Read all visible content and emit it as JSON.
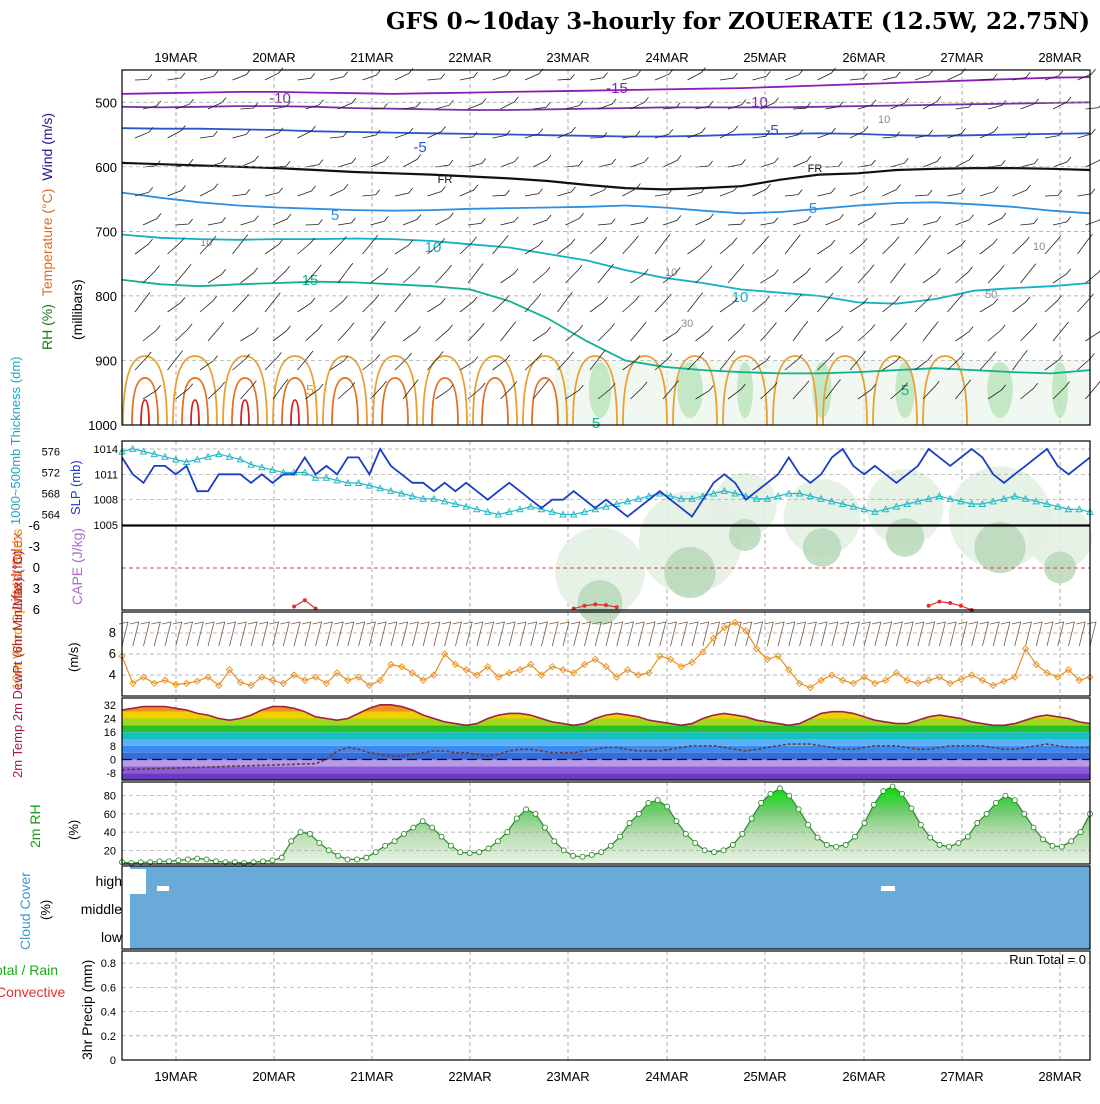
{
  "page": {
    "title": "GFS 0~10day 3-hourly for ZOUERATE (12.5W, 22.75N)"
  },
  "chart_data": [
    {
      "type": "line",
      "panel": "upper-air cross-section",
      "dates": [
        "19MAR",
        "20MAR",
        "21MAR",
        "22MAR",
        "23MAR",
        "24MAR",
        "25MAR",
        "26MAR",
        "27MAR",
        "28MAR"
      ],
      "ylabel_parts": {
        "rh": "RH (%)",
        "temperature": "Temperature (°C)",
        "wind": "Wind (m/s)",
        "units": "(millibars)"
      },
      "yticks": [
        500,
        600,
        700,
        800,
        900,
        1000
      ],
      "ylim": [
        1000,
        450
      ],
      "temperature_contours": [
        {
          "label": "-15",
          "color": "#8a1fb8",
          "level_mb": [
            487,
            486,
            485,
            484,
            484,
            485,
            486,
            487,
            486,
            485,
            484,
            483,
            482,
            481,
            480,
            479,
            478,
            476,
            474,
            472,
            470,
            468,
            466,
            464,
            462,
            461
          ]
        },
        {
          "label": "-10",
          "color": "#7a2ea8",
          "level_mb": [
            507,
            508,
            507,
            506,
            506,
            507,
            509,
            510,
            511,
            512,
            512,
            511,
            510,
            509,
            508,
            508,
            508,
            508,
            507,
            506,
            505,
            504,
            503,
            502,
            501,
            500
          ]
        },
        {
          "label": "-5",
          "color": "#2a55d0",
          "level_mb": [
            540,
            541,
            541,
            542,
            543,
            545,
            546,
            547,
            548,
            549,
            550,
            551,
            552,
            553,
            553,
            552,
            550,
            549,
            548,
            549,
            551,
            552,
            551,
            550,
            549,
            548
          ]
        },
        {
          "label": "FR",
          "color": "#111111",
          "level_mb": [
            594,
            596,
            598,
            600,
            602,
            605,
            608,
            610,
            612,
            615,
            618,
            622,
            628,
            633,
            635,
            633,
            630,
            620,
            612,
            610,
            605,
            603,
            602,
            602,
            603,
            605
          ]
        },
        {
          "label": "5",
          "color": "#2e8fe0",
          "level_mb": [
            640,
            648,
            655,
            660,
            663,
            665,
            667,
            668,
            667,
            665,
            664,
            663,
            662,
            660,
            663,
            668,
            672,
            670,
            665,
            660,
            656,
            655,
            658,
            662,
            668,
            672
          ]
        },
        {
          "label": "10",
          "color": "#12b0c0",
          "level_mb": [
            705,
            710,
            712,
            713,
            712,
            712,
            711,
            712,
            715,
            720,
            725,
            735,
            745,
            760,
            772,
            780,
            790,
            795,
            800,
            810,
            812,
            805,
            792,
            788,
            785,
            780
          ]
        },
        {
          "label": "15",
          "color": "#10b090",
          "level_mb": [
            775,
            782,
            785,
            782,
            780,
            778,
            779,
            782,
            785,
            790,
            808,
            835,
            870,
            900,
            910,
            915,
            918,
            920,
            920,
            918,
            915,
            912,
            915,
            918,
            920,
            915
          ]
        }
      ],
      "contour_labels": {
        "fr": "FR",
        "temps": [
          "-15",
          "-10",
          "-5",
          "5",
          "10",
          "15"
        ],
        "rh": [
          "10",
          "30",
          "50"
        ]
      }
    },
    {
      "type": "line",
      "panel": "thickness-slp",
      "ylabel_left": "1000~500mb Thickness (dm)",
      "ylabel_right": "SLP (mb)",
      "left_ticks": [
        "564",
        "568",
        "572",
        "576"
      ],
      "right_ticks": [
        "1005",
        "1008",
        "1011",
        "1014"
      ],
      "series": [
        {
          "name": "SLP (mb)",
          "color": "#1a3cc8",
          "values": [
            1013,
            1011,
            1010,
            1012,
            1012,
            1011,
            1012,
            1009,
            1009,
            1011,
            1011,
            1011,
            1010,
            1011,
            1010,
            1011,
            1011,
            1013,
            1011,
            1012,
            1011,
            1013,
            1013,
            1011,
            1014,
            1012,
            1011,
            1010,
            1010,
            1009,
            1010,
            1009,
            1010,
            1009,
            1008,
            1009,
            1010,
            1009,
            1008,
            1007,
            1008,
            1008,
            1009,
            1008,
            1007,
            1008,
            1007,
            1006,
            1007,
            1008,
            1009,
            1008,
            1007,
            1006,
            1008,
            1010,
            1011,
            1010,
            1008,
            1009,
            1010,
            1011,
            1013,
            1011,
            1010,
            1011,
            1013,
            1014,
            1012,
            1011,
            1012,
            1011,
            1010,
            1011,
            1012,
            1014,
            1013,
            1012,
            1013,
            1014,
            1013,
            1011,
            1010,
            1011,
            1012,
            1013,
            1014,
            1012,
            1011,
            1012,
            1013
          ]
        },
        {
          "name": "Thickness (dm)",
          "color": "#20b8c8",
          "values": [
            576,
            576.5,
            576,
            575.5,
            575,
            574.5,
            574,
            574.5,
            575,
            575.5,
            575,
            574.5,
            573.5,
            573,
            572.5,
            572,
            572,
            572,
            571,
            571,
            570.5,
            570,
            570,
            569.5,
            569,
            568.5,
            568,
            567.5,
            567,
            567,
            566.5,
            566,
            565.5,
            565,
            564.5,
            564,
            564.5,
            565,
            565.5,
            565,
            564.5,
            564,
            564,
            564.5,
            565,
            565.5,
            566,
            566.5,
            567,
            567.5,
            568,
            567.5,
            567,
            567,
            567.5,
            568,
            568.5,
            568,
            567.5,
            567,
            567,
            567.5,
            568,
            568,
            567.5,
            567,
            566.5,
            566,
            565.5,
            565,
            564.5,
            565,
            565.5,
            566,
            566.5,
            567,
            567.5,
            567,
            566.5,
            566,
            566,
            566.5,
            567,
            567.5,
            567,
            566.5,
            566,
            565.5,
            565,
            565,
            564.5
          ]
        }
      ]
    },
    {
      "type": "line",
      "panel": "lifted-index-cape",
      "ylabel_left": "Lifted Index",
      "ylabel_right": "CAPE (J/kg)",
      "yticks": [
        "-6",
        "-3",
        "0",
        "3",
        "6"
      ],
      "series": [
        {
          "name": "Lifted Index",
          "color": "#e03030",
          "values": [
            null,
            null,
            null,
            null,
            null,
            null,
            null,
            null,
            null,
            null,
            null,
            null,
            null,
            null,
            null,
            null,
            5.5,
            4.6,
            5.8,
            null,
            null,
            null,
            null,
            null,
            null,
            null,
            null,
            null,
            null,
            null,
            null,
            null,
            null,
            null,
            null,
            null,
            null,
            null,
            null,
            null,
            null,
            null,
            5.8,
            5.4,
            5.2,
            5.3,
            5.6,
            null,
            null,
            null,
            null,
            null,
            null,
            null,
            null,
            null,
            null,
            null,
            null,
            null,
            null,
            null,
            null,
            null,
            null,
            null,
            null,
            null,
            null,
            null,
            null,
            null,
            null,
            null,
            null,
            5.4,
            4.8,
            5.0,
            5.4,
            6.0,
            null,
            null,
            null,
            null,
            null,
            null,
            null,
            null,
            null,
            null,
            null
          ]
        }
      ]
    },
    {
      "type": "line",
      "panel": "10m wind",
      "ylabel": "10m Wind Speed & Barbs",
      "yunit": "(m/s)",
      "yticks": [
        "4",
        "6",
        "8"
      ],
      "series": [
        {
          "name": "10m Wind Speed",
          "color": "#e89020",
          "values": [
            5.8,
            3.2,
            3.8,
            3.2,
            3.5,
            3.1,
            3.2,
            3.4,
            3.8,
            3.0,
            4.5,
            3.3,
            3.0,
            3.8,
            3.5,
            3.2,
            4.0,
            3.5,
            3.8,
            3.2,
            4.2,
            3.5,
            3.8,
            3.0,
            3.5,
            5.0,
            4.8,
            4.2,
            3.5,
            4.0,
            6.0,
            5.0,
            4.5,
            4.0,
            4.8,
            3.8,
            4.2,
            4.5,
            5.0,
            4.0,
            4.8,
            4.5,
            4.2,
            5.0,
            5.5,
            4.8,
            3.8,
            4.5,
            4.0,
            4.2,
            5.8,
            5.5,
            4.8,
            5.2,
            6.2,
            7.5,
            8.5,
            9.0,
            8.2,
            6.5,
            5.5,
            5.8,
            4.5,
            3.2,
            2.8,
            3.5,
            4.0,
            3.5,
            3.2,
            3.8,
            3.2,
            3.5,
            4.2,
            3.5,
            3.2,
            3.5,
            3.8,
            3.2,
            3.6,
            4.0,
            3.5,
            3.0,
            3.4,
            3.8,
            6.5,
            5.0,
            4.2,
            3.8,
            4.5,
            3.5,
            3.8
          ]
        }
      ]
    },
    {
      "type": "area",
      "panel": "2m temperature",
      "ylabel": "2m Temp 2m DewPt (6hr Min/Max) (°C)",
      "yticks": [
        "32",
        "24",
        "16",
        "8",
        "0",
        "-8"
      ],
      "series": [
        {
          "name": "2m Temp",
          "color": "#a02040",
          "values": [
            29,
            30,
            31,
            31,
            31,
            30,
            29,
            27,
            26,
            24,
            23,
            24,
            26,
            29,
            31,
            31,
            30,
            28,
            25,
            24,
            23,
            24,
            27,
            30,
            32,
            32,
            31,
            29,
            26,
            24,
            22,
            21,
            20,
            21,
            24,
            26,
            27,
            27,
            26,
            24,
            22,
            21,
            20,
            21,
            24,
            26,
            27,
            26,
            25,
            23,
            22,
            21,
            20,
            21,
            24,
            26,
            27,
            26,
            25,
            23,
            22,
            21,
            20,
            21,
            24,
            27,
            28,
            28,
            27,
            25,
            23,
            22,
            21,
            21,
            23,
            25,
            26,
            25,
            24,
            22,
            21,
            20,
            20,
            21,
            23,
            25,
            26,
            25,
            24,
            22,
            21
          ]
        },
        {
          "name": "2m DewPt",
          "color": "#6a3a3a",
          "values": [
            -6,
            -5.8,
            -5.6,
            -5.4,
            -5.2,
            -5,
            -4.8,
            -4.6,
            -4.4,
            -4.2,
            -4,
            -3.8,
            -3.6,
            -3.4,
            -3.2,
            -3,
            -2.8,
            -2.6,
            -2.4,
            0,
            5,
            7,
            6,
            4,
            3,
            2,
            2,
            3,
            4,
            5,
            5,
            4,
            4,
            3,
            2,
            3,
            5,
            6,
            6,
            5,
            4,
            4,
            4,
            5,
            6,
            7,
            7,
            6,
            5,
            5,
            5,
            6,
            7,
            8,
            8,
            8,
            7,
            6,
            5,
            6,
            7,
            8,
            9,
            9,
            9,
            8,
            7,
            6,
            6,
            7,
            8,
            8,
            8,
            7,
            6,
            6,
            7,
            8,
            8,
            8,
            8,
            7,
            6,
            6,
            7,
            8,
            9,
            8,
            7,
            7,
            7
          ]
        }
      ]
    },
    {
      "type": "area",
      "panel": "2m relative humidity",
      "ylabel": "2m RH",
      "yunit": "(%)",
      "yticks": [
        "20",
        "40",
        "60",
        "80"
      ],
      "series": [
        {
          "name": "2m RH",
          "color": "#2a8a2a",
          "values": [
            7,
            6,
            7,
            7,
            8,
            8,
            9,
            10,
            11,
            10,
            8,
            7,
            7,
            6,
            7,
            8,
            9,
            12,
            30,
            40,
            38,
            28,
            20,
            14,
            10,
            10,
            12,
            18,
            25,
            30,
            38,
            45,
            52,
            45,
            35,
            25,
            18,
            17,
            18,
            22,
            30,
            40,
            55,
            65,
            60,
            45,
            30,
            20,
            14,
            13,
            15,
            18,
            25,
            35,
            50,
            60,
            72,
            75,
            68,
            52,
            38,
            28,
            20,
            18,
            20,
            26,
            38,
            55,
            72,
            82,
            88,
            80,
            65,
            48,
            34,
            26,
            24,
            26,
            35,
            50,
            70,
            85,
            90,
            82,
            66,
            48,
            34,
            26,
            24,
            28,
            35,
            50,
            60,
            72,
            80,
            75,
            60,
            45,
            32,
            25,
            24,
            30,
            40,
            60
          ]
        }
      ]
    },
    {
      "type": "heatmap",
      "panel": "cloud cover",
      "ylabel": "Cloud Cover",
      "yunit": "(%)",
      "rows": [
        "high",
        "middle",
        "low"
      ]
    },
    {
      "type": "bar",
      "panel": "precipitation",
      "ylabel_parts": {
        "a": "3hr Precip (mm)",
        "b": "Total / Rain",
        "c": "Convective"
      },
      "yticks": [
        "0",
        "0.2",
        "0.4",
        "0.6",
        "0.8"
      ],
      "run_total_label": "Run Total = 0",
      "values": []
    }
  ]
}
